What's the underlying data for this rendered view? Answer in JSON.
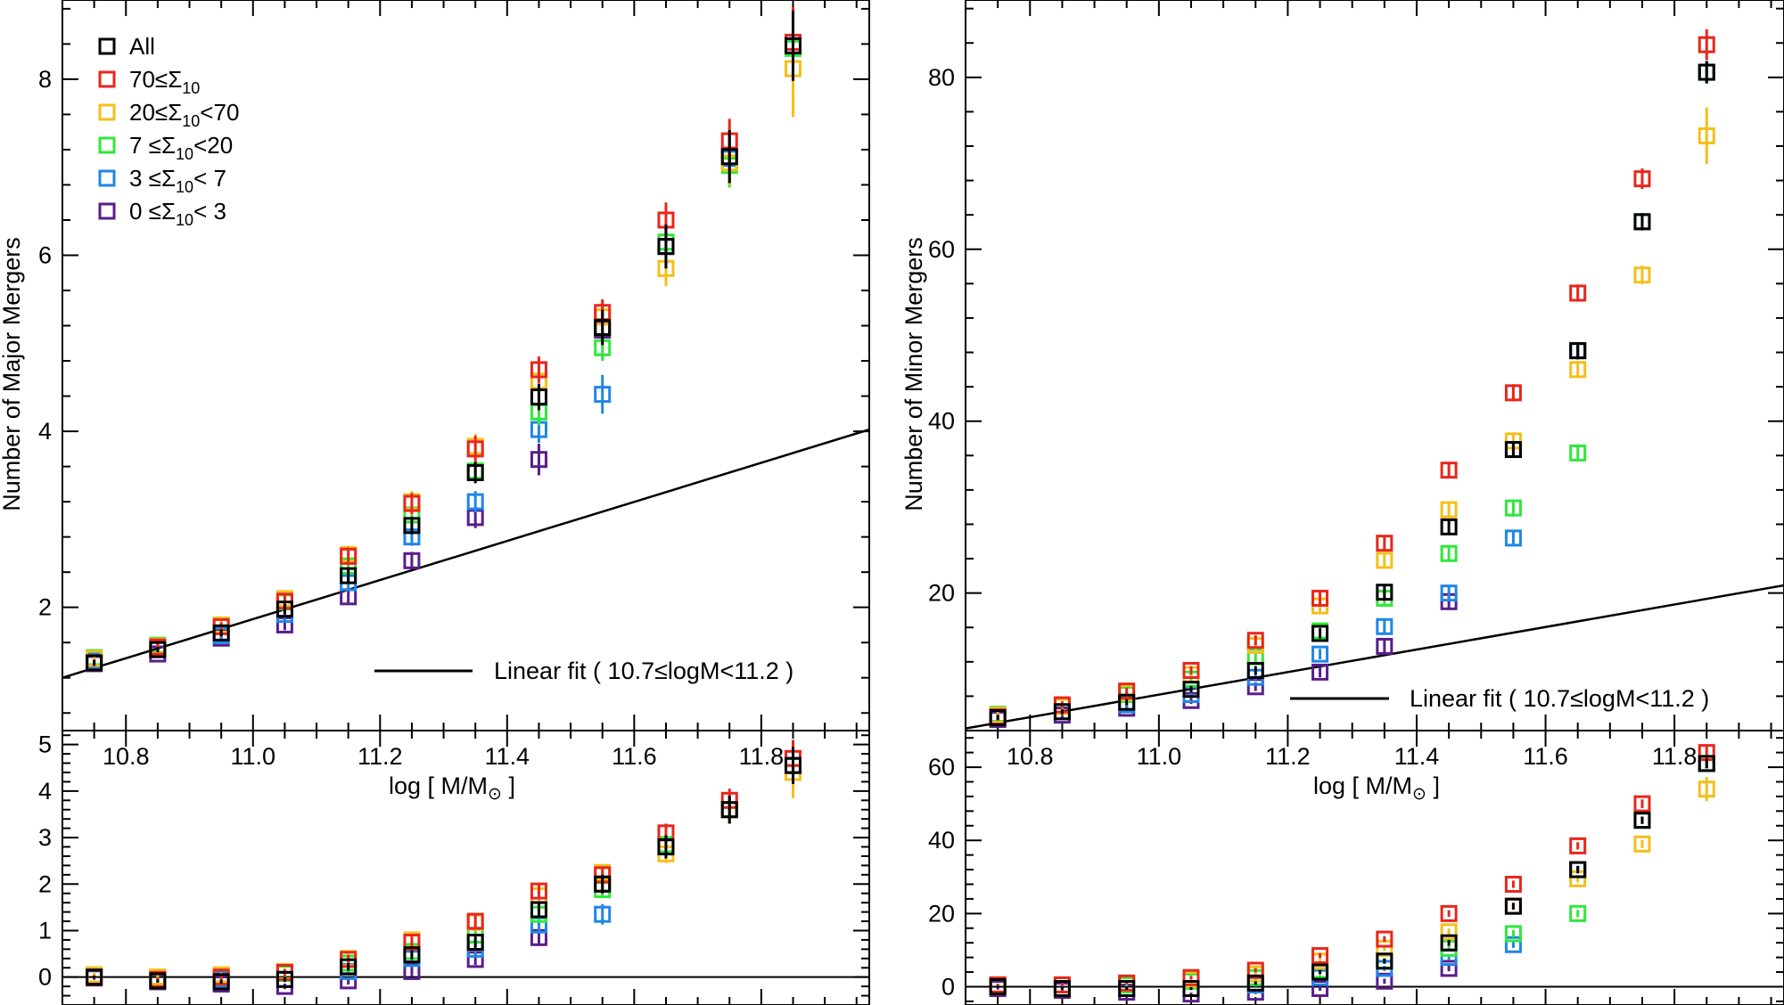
{
  "colors": {
    "All": "#000000",
    "70≤Σ10": "#e8261c",
    "20≤Σ10<70": "#f4bf1a",
    "7≤Σ10<20": "#2fe83a",
    "3≤Σ10<7": "#1f86e8",
    "0≤Σ10<3": "#5a1d8a"
  },
  "legend": {
    "items": [
      {
        "label": "All",
        "series": "All"
      },
      {
        "label": "70≤Σ",
        "sub": "10",
        "tail": "",
        "series": "70≤Σ10"
      },
      {
        "label": "20≤Σ",
        "sub": "10",
        "tail": "<70",
        "series": "20≤Σ10<70"
      },
      {
        "label": " 7 ≤Σ",
        "sub": "10",
        "tail": "<20",
        "series": "7≤Σ10<20"
      },
      {
        "label": " 3 ≤Σ",
        "sub": "10",
        "tail": "< 7",
        "series": "3≤Σ10<7"
      },
      {
        "label": " 0 ≤Σ",
        "sub": "10",
        "tail": "< 3",
        "series": "0≤Σ10<3"
      }
    ]
  },
  "xaxis": {
    "label_pre": "log [ M/M",
    "label_sub": "⊙",
    "label_post": " ]",
    "ticks": [
      10.8,
      11.0,
      11.2,
      11.4,
      11.6,
      11.8
    ],
    "tick_labels": [
      "10.8",
      "11.0",
      "11.2",
      "11.4",
      "11.6",
      "11.8"
    ],
    "range": [
      10.7,
      11.97
    ]
  },
  "chart_data": [
    {
      "type": "scatter",
      "panel": "left-top",
      "ylabel": "Number of Major Mergers",
      "xlabel": "log [ M/M⊙ ]",
      "xlim": [
        10.7,
        11.97
      ],
      "ylim": [
        0.6,
        8.9
      ],
      "yticks": [
        2,
        4,
        6,
        8
      ],
      "ytick_labels": [
        "2",
        "4",
        "6",
        "8"
      ],
      "fit": {
        "label": "Linear fit ( 10.7≤logM<11.2 )",
        "x": [
          10.7,
          11.97
        ],
        "y": [
          1.2,
          4.02
        ]
      },
      "x": [
        10.75,
        10.85,
        10.95,
        11.05,
        11.15,
        11.25,
        11.35,
        11.45,
        11.55,
        11.65,
        11.75,
        11.85
      ],
      "series": [
        {
          "name": "All",
          "y": [
            1.37,
            1.52,
            1.71,
            1.98,
            2.36,
            2.93,
            3.53,
            4.39,
            5.18,
            6.1,
            7.12,
            8.38
          ],
          "err": [
            0.03,
            0.03,
            0.04,
            0.06,
            0.08,
            0.1,
            0.12,
            0.15,
            0.2,
            0.25,
            0.3,
            0.4
          ]
        },
        {
          "name": "70≤Σ10",
          "y": [
            1.37,
            1.55,
            1.78,
            2.07,
            2.58,
            3.18,
            3.8,
            4.7,
            5.35,
            6.4,
            7.3,
            8.42
          ],
          "err": [
            0.04,
            0.04,
            0.05,
            0.07,
            0.1,
            0.12,
            0.15,
            0.15,
            0.15,
            0.2,
            0.25,
            0.4
          ]
        },
        {
          "name": "20≤Σ10<70",
          "y": [
            1.42,
            1.56,
            1.8,
            2.1,
            2.6,
            3.2,
            3.83,
            4.57,
            5.3,
            5.85,
            7.05,
            8.12
          ],
          "err": [
            0.04,
            0.04,
            0.05,
            0.07,
            0.1,
            0.12,
            0.14,
            0.15,
            0.18,
            0.2,
            0.25,
            0.55
          ]
        },
        {
          "name": "7≤Σ10<20",
          "y": [
            1.43,
            1.57,
            1.8,
            2.06,
            2.47,
            3.05,
            3.55,
            4.22,
            4.95,
            6.15,
            7.02,
            8.35
          ],
          "err": [
            0.04,
            0.04,
            0.05,
            0.06,
            0.08,
            0.1,
            0.12,
            0.15,
            0.15,
            0.2,
            0.25,
            0.35
          ]
        },
        {
          "name": "3≤Σ10<7",
          "y": [
            1.4,
            1.52,
            1.68,
            1.92,
            2.28,
            2.8,
            3.2,
            4.02,
            4.42,
            6.1,
            7.1,
            8.38
          ],
          "err": [
            0.04,
            0.04,
            0.05,
            0.06,
            0.08,
            0.1,
            0.12,
            0.15,
            0.22,
            0.25,
            0.3,
            0.4
          ]
        },
        {
          "name": "0≤Σ10<3",
          "y": [
            1.36,
            1.47,
            1.65,
            1.8,
            2.12,
            2.53,
            3.02,
            3.68,
            5.15,
            6.1,
            7.12,
            8.38
          ],
          "err": [
            0.04,
            0.04,
            0.05,
            0.06,
            0.08,
            0.1,
            0.12,
            0.18,
            0.2,
            0.25,
            0.3,
            0.4
          ]
        }
      ]
    },
    {
      "type": "scatter",
      "panel": "left-bottom",
      "ylabel": "",
      "xlim": [
        10.7,
        11.97
      ],
      "ylim": [
        -0.6,
        5.3
      ],
      "yticks": [
        0,
        1,
        2,
        3,
        4,
        5
      ],
      "ytick_labels": [
        "0",
        "1",
        "2",
        "3",
        "4",
        "5"
      ],
      "zero_line": true,
      "x": [
        10.75,
        10.85,
        10.95,
        11.05,
        11.15,
        11.25,
        11.35,
        11.45,
        11.55,
        11.65,
        11.75,
        11.85
      ],
      "series": [
        {
          "name": "All",
          "y": [
            0.0,
            -0.08,
            -0.1,
            -0.05,
            0.22,
            0.48,
            0.75,
            1.45,
            2.0,
            2.8,
            3.6,
            4.55
          ],
          "err": [
            0.03,
            0.03,
            0.04,
            0.05,
            0.08,
            0.1,
            0.12,
            0.15,
            0.2,
            0.25,
            0.3,
            0.4
          ]
        },
        {
          "name": "70≤Σ10",
          "y": [
            0.0,
            -0.05,
            0.0,
            0.1,
            0.38,
            0.75,
            1.2,
            1.85,
            2.2,
            3.1,
            3.8,
            4.7
          ],
          "err": [
            0.04,
            0.04,
            0.05,
            0.07,
            0.1,
            0.12,
            0.15,
            0.15,
            0.15,
            0.2,
            0.25,
            0.4
          ]
        },
        {
          "name": "20≤Σ10<70",
          "y": [
            0.05,
            0.0,
            0.05,
            0.12,
            0.4,
            0.8,
            1.18,
            1.75,
            2.25,
            2.65,
            3.6,
            4.4
          ],
          "err": [
            0.04,
            0.04,
            0.05,
            0.07,
            0.1,
            0.12,
            0.14,
            0.15,
            0.18,
            0.2,
            0.25,
            0.55
          ]
        },
        {
          "name": "7≤Σ10<20",
          "y": [
            0.05,
            0.0,
            0.05,
            0.08,
            0.3,
            0.55,
            0.9,
            1.35,
            1.88,
            2.85,
            3.6,
            4.55
          ],
          "err": [
            0.04,
            0.04,
            0.05,
            0.06,
            0.08,
            0.1,
            0.12,
            0.15,
            0.15,
            0.2,
            0.25,
            0.35
          ]
        },
        {
          "name": "3≤Σ10<7",
          "y": [
            0.0,
            -0.05,
            -0.05,
            -0.05,
            0.12,
            0.4,
            0.6,
            1.12,
            1.35,
            2.8,
            3.6,
            4.55
          ],
          "err": [
            0.04,
            0.04,
            0.05,
            0.06,
            0.08,
            0.1,
            0.12,
            0.15,
            0.22,
            0.25,
            0.3,
            0.4
          ]
        },
        {
          "name": "0≤Σ10<3",
          "y": [
            -0.02,
            -0.1,
            -0.15,
            -0.2,
            -0.08,
            0.12,
            0.38,
            0.85,
            2.0,
            2.8,
            3.6,
            4.55
          ],
          "err": [
            0.04,
            0.04,
            0.05,
            0.06,
            0.08,
            0.1,
            0.12,
            0.18,
            0.2,
            0.25,
            0.3,
            0.4
          ]
        }
      ]
    },
    {
      "type": "scatter",
      "panel": "right-top",
      "ylabel": "Number of Minor Mergers",
      "xlabel": "log [ M/M⊙ ]",
      "xlim": [
        10.7,
        11.97
      ],
      "ylim": [
        4.0,
        89.0
      ],
      "yticks": [
        20,
        40,
        60,
        80
      ],
      "ytick_labels": [
        "20",
        "40",
        "60",
        "80"
      ],
      "fit": {
        "label": "Linear fit ( 10.7≤logM<11.2 )",
        "x": [
          10.7,
          11.97
        ],
        "y": [
          4.25,
          20.9
        ]
      },
      "x": [
        10.75,
        10.85,
        10.95,
        11.05,
        11.15,
        11.25,
        11.35,
        11.45,
        11.55,
        11.65,
        11.75,
        11.85
      ],
      "series": [
        {
          "name": "All",
          "y": [
            5.5,
            6.2,
            7.3,
            8.8,
            11.0,
            15.3,
            20.1,
            27.7,
            36.7,
            48.2,
            63.2,
            80.6
          ],
          "err": [
            0.3,
            0.3,
            0.35,
            0.4,
            0.5,
            0.6,
            0.7,
            0.8,
            0.9,
            1.0,
            1.0,
            1.3
          ]
        },
        {
          "name": "70≤Σ10",
          "y": [
            5.6,
            7.0,
            8.6,
            11.0,
            14.5,
            19.4,
            25.8,
            34.3,
            43.3,
            54.9,
            68.2,
            83.8
          ],
          "err": [
            0.3,
            0.4,
            0.4,
            0.5,
            0.6,
            0.7,
            0.8,
            0.9,
            1.0,
            1.0,
            1.2,
            1.8
          ]
        },
        {
          "name": "20≤Σ10<70",
          "y": [
            5.8,
            6.8,
            8.4,
            10.5,
            13.9,
            18.5,
            23.8,
            29.7,
            37.7,
            46.0,
            57.0,
            73.2
          ],
          "err": [
            0.3,
            0.4,
            0.4,
            0.5,
            0.6,
            0.7,
            0.8,
            0.9,
            1.0,
            1.0,
            1.1,
            3.3
          ]
        },
        {
          "name": "7≤Σ10<20",
          "y": [
            5.9,
            6.8,
            8.2,
            10.0,
            12.6,
            15.6,
            19.4,
            24.6,
            29.9,
            36.3,
            63.2,
            80.6
          ],
          "err": [
            0.3,
            0.4,
            0.4,
            0.5,
            0.6,
            0.7,
            0.8,
            0.9,
            1.0,
            1.0,
            1.0,
            1.3
          ]
        },
        {
          "name": "3≤Σ10<7",
          "y": [
            5.5,
            6.2,
            7.0,
            8.2,
            10.2,
            12.9,
            16.1,
            20.0,
            26.4,
            48.2,
            63.2,
            80.6
          ],
          "err": [
            0.3,
            0.3,
            0.35,
            0.4,
            0.5,
            0.6,
            0.7,
            0.8,
            0.9,
            1.0,
            1.0,
            1.3
          ]
        },
        {
          "name": "0≤Σ10<3",
          "y": [
            5.3,
            5.8,
            6.6,
            7.5,
            9.1,
            10.8,
            13.8,
            19.0,
            36.7,
            48.2,
            63.2,
            80.6
          ],
          "err": [
            0.3,
            0.3,
            0.35,
            0.4,
            0.5,
            0.6,
            0.7,
            0.8,
            0.9,
            1.0,
            1.0,
            1.3
          ]
        }
      ]
    },
    {
      "type": "scatter",
      "panel": "right-bottom",
      "ylabel": "",
      "xlim": [
        10.7,
        11.97
      ],
      "ylim": [
        -5.0,
        70.0
      ],
      "yticks": [
        0,
        20,
        40,
        60
      ],
      "ytick_labels": [
        "0",
        "20",
        "40",
        "60"
      ],
      "zero_line": true,
      "x": [
        10.75,
        10.85,
        10.95,
        11.05,
        11.15,
        11.25,
        11.35,
        11.45,
        11.55,
        11.65,
        11.75,
        11.85
      ],
      "series": [
        {
          "name": "All",
          "y": [
            0.0,
            -0.5,
            -0.5,
            -0.5,
            1.0,
            4.0,
            7.0,
            12.0,
            22.0,
            32.0,
            45.5,
            61.0
          ],
          "err": [
            0.3,
            0.3,
            0.35,
            0.4,
            0.5,
            0.6,
            0.7,
            0.8,
            0.9,
            1.0,
            1.0,
            1.3
          ]
        },
        {
          "name": "70≤Σ10",
          "y": [
            0.5,
            0.5,
            1.0,
            2.5,
            4.5,
            8.5,
            13.0,
            20.0,
            28.0,
            38.5,
            50.0,
            64.0
          ],
          "err": [
            0.3,
            0.4,
            0.4,
            0.5,
            0.6,
            0.7,
            0.8,
            0.9,
            1.0,
            1.0,
            1.2,
            1.8
          ]
        },
        {
          "name": "20≤Σ10<70",
          "y": [
            0.5,
            0.5,
            1.0,
            2.0,
            3.5,
            7.0,
            10.5,
            15.0,
            22.0,
            29.5,
            39.0,
            54.0
          ],
          "err": [
            0.3,
            0.4,
            0.4,
            0.5,
            0.6,
            0.7,
            0.8,
            0.9,
            1.0,
            1.0,
            1.1,
            3.3
          ]
        },
        {
          "name": "7≤Σ10<20",
          "y": [
            0.5,
            0.5,
            0.5,
            1.5,
            2.5,
            4.5,
            7.0,
            10.5,
            14.5,
            20.0,
            45.5,
            61.0
          ],
          "err": [
            0.3,
            0.4,
            0.4,
            0.5,
            0.6,
            0.7,
            0.8,
            0.9,
            1.0,
            1.0,
            1.0,
            1.3
          ]
        },
        {
          "name": "3≤Σ10<7",
          "y": [
            0.0,
            -0.5,
            -0.5,
            -0.5,
            0.5,
            2.5,
            5.0,
            8.0,
            11.5,
            32.0,
            45.5,
            61.0
          ],
          "err": [
            0.3,
            0.3,
            0.35,
            0.4,
            0.5,
            0.6,
            0.7,
            0.8,
            0.9,
            1.0,
            1.0,
            1.3
          ]
        },
        {
          "name": "0≤Σ10<3",
          "y": [
            -0.5,
            -1.0,
            -1.5,
            -2.0,
            -1.5,
            -0.5,
            1.5,
            5.0,
            22.0,
            32.0,
            45.5,
            61.0
          ],
          "err": [
            0.3,
            0.3,
            0.35,
            0.4,
            0.5,
            0.6,
            0.7,
            0.8,
            0.9,
            1.0,
            1.0,
            1.3
          ]
        }
      ]
    }
  ]
}
